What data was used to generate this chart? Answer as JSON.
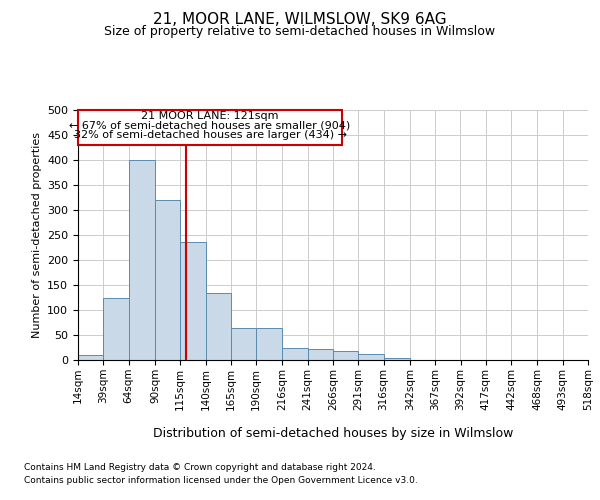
{
  "title1": "21, MOOR LANE, WILMSLOW, SK9 6AG",
  "title2": "Size of property relative to semi-detached houses in Wilmslow",
  "xlabel": "Distribution of semi-detached houses by size in Wilmslow",
  "ylabel": "Number of semi-detached properties",
  "footer1": "Contains HM Land Registry data © Crown copyright and database right 2024.",
  "footer2": "Contains public sector information licensed under the Open Government Licence v3.0.",
  "annotation_title": "21 MOOR LANE: 121sqm",
  "annotation_line1": "← 67% of semi-detached houses are smaller (904)",
  "annotation_line2": "32% of semi-detached houses are larger (434) →",
  "property_size": 121,
  "bin_edges": [
    14,
    39,
    64,
    90,
    115,
    140,
    165,
    190,
    216,
    241,
    266,
    291,
    316,
    342,
    367,
    392,
    417,
    442,
    468,
    493,
    518
  ],
  "bar_values": [
    10,
    125,
    400,
    320,
    237,
    135,
    65,
    65,
    25,
    22,
    18,
    12,
    5,
    0,
    0,
    0,
    0,
    0,
    0,
    0
  ],
  "bar_color": "#c9d9e8",
  "bar_edge_color": "#5a8ab0",
  "vline_color": "#cc0000",
  "grid_color": "#cccccc",
  "bg_color": "#ffffff",
  "ylim": [
    0,
    500
  ],
  "yticks": [
    0,
    50,
    100,
    150,
    200,
    250,
    300,
    350,
    400,
    450,
    500
  ]
}
